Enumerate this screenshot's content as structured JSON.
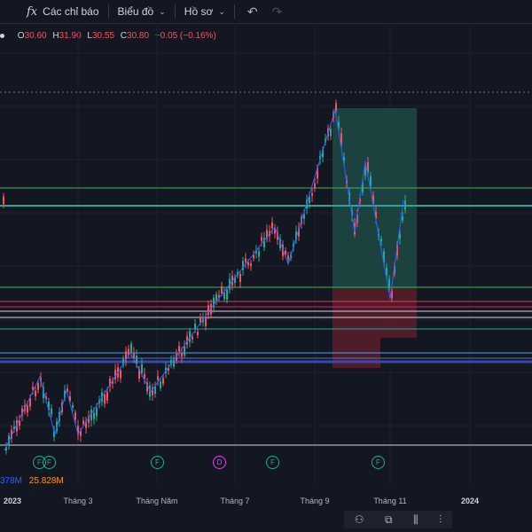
{
  "toolbar": {
    "indicators_label": "Các chỉ báo",
    "chart_label": "Biểu đồ",
    "profile_label": "Hồ sơ",
    "fx_icon": "fx",
    "chevron": "⌄",
    "undo_icon": "↶",
    "redo_icon": "↷"
  },
  "ohlc": {
    "o_key": "O",
    "o_val": "30.60",
    "h_key": "H",
    "h_val": "31.90",
    "l_key": "L",
    "l_val": "30.55",
    "c_key": "C",
    "c_val": "30.80",
    "change": "−0.05 (−0.16%)"
  },
  "volume": {
    "v1": "378M",
    "v2": "25.828M"
  },
  "time_axis": [
    "2023",
    "Tháng 3",
    "Tháng Năm",
    "Tháng 7",
    "Tháng 9",
    "Tháng 11",
    "2024"
  ],
  "event_badges": [
    "F",
    "F",
    "F",
    "D",
    "F",
    "F"
  ],
  "bottom_icons": [
    "⚇",
    "⧉",
    "⫼",
    "⫶"
  ],
  "colors": {
    "background": "#131722",
    "up": "#22ab94",
    "down": "#f7525f",
    "profit_zone": "#1e4a45",
    "loss_zone": "#5b1f2a",
    "zigzag": "#2962ff"
  }
}
